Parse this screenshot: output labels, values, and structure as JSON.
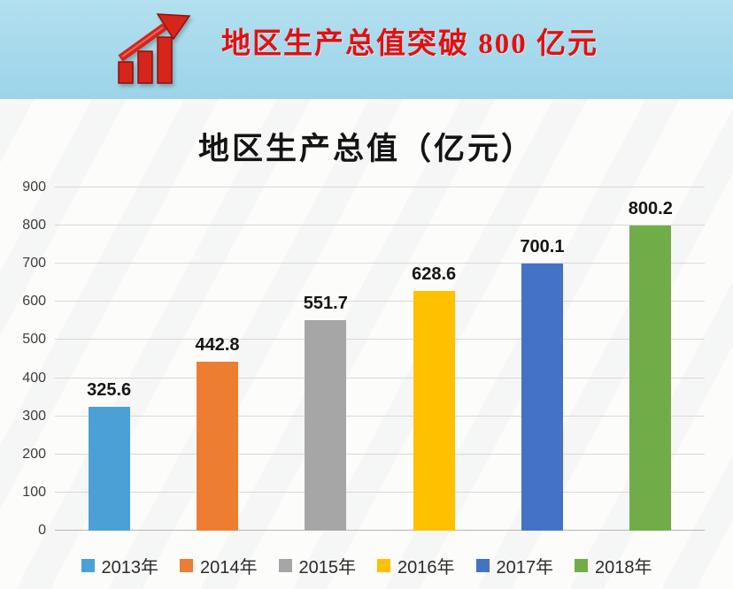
{
  "banner": {
    "title": "地区生产总值突破 800 亿元",
    "icon": "rising-bar-chart-icon",
    "bg_color": "#a6d9ec",
    "text_color": "#e50f0f"
  },
  "chart_title": "地区生产总值（亿元）",
  "chart_data": {
    "type": "bar",
    "title": "地区生产总值（亿元）",
    "categories": [
      "2013年",
      "2014年",
      "2015年",
      "2016年",
      "2017年",
      "2018年"
    ],
    "values": [
      325.6,
      442.8,
      551.7,
      628.6,
      700.1,
      800.2
    ],
    "bar_colors": [
      "#4ba1d5",
      "#ed7d31",
      "#a6a6a6",
      "#ffc000",
      "#4472c4",
      "#70ad47"
    ],
    "xlabel": "",
    "ylabel": "",
    "ylim": [
      0,
      900
    ],
    "yticks": [
      0,
      100,
      200,
      300,
      400,
      500,
      600,
      700,
      800,
      900
    ],
    "grid": true,
    "legend_position": "bottom",
    "legend": [
      "2013年",
      "2014年",
      "2015年",
      "2016年",
      "2017年",
      "2018年"
    ]
  }
}
